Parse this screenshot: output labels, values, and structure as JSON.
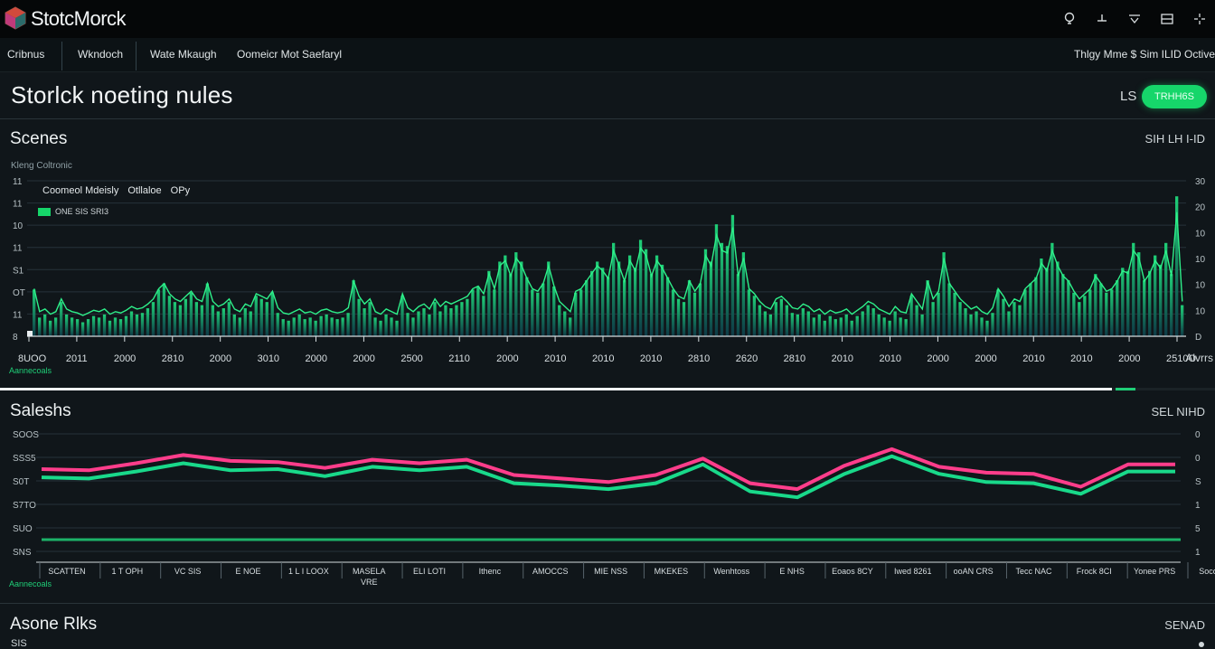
{
  "app": {
    "title": "StotcMorck",
    "colors": {
      "accent": "#16d66a",
      "bars": "#1fce77",
      "pink": "#ff3d8b",
      "teal": "#19d98a",
      "background": "#10161a"
    }
  },
  "toolbar": {
    "icons": [
      "lightbulb-icon",
      "pin-icon",
      "filter-icon",
      "panel-icon",
      "crosshair-icon"
    ]
  },
  "nav": {
    "items": [
      "Cribnus",
      "Wkndoch",
      "Wate Mkaugh",
      "Oomeicr Mot Saefaryl"
    ],
    "right": "Thlgy Mme $ Sim ILID Octive"
  },
  "header": {
    "title": "Storlck noeting nules",
    "ls": "LS",
    "pill": "TRHH6S"
  },
  "section1": {
    "title": "Scenes",
    "right": "SIH LH I-ID",
    "note": "Kleng Coltronic",
    "legend": [
      "Coomeol Mdeisly",
      "Otllaloe",
      "OPy"
    ],
    "legend2": "ONE SIS SRI3",
    "bottom_note": "Aannecoals",
    "axis_label_right": "Alvrrs"
  },
  "section2": {
    "title": "Saleshs",
    "right": "SEL NIHD",
    "bottom_note": "Aannecoals"
  },
  "section3": {
    "title": "Asone Rlks",
    "right": "SENAD",
    "small": "SIS"
  },
  "progress": {
    "value": 0.915
  },
  "chart_data": [
    {
      "type": "bar",
      "title": "",
      "xlabel": "",
      "ylabel": "",
      "y_ticks_left": [
        "11",
        "11",
        "10",
        "11",
        "S1",
        "OT",
        "11",
        "8"
      ],
      "y_ticks_right": [
        "30",
        "20",
        "10",
        "10",
        "10",
        "10",
        "D"
      ],
      "x_ticks": [
        "8UOO",
        "2011",
        "2000",
        "2810",
        "2000",
        "3010",
        "2000",
        "2000",
        "2500",
        "2110",
        "2000",
        "2010",
        "2010",
        "2010",
        "2810",
        "2620",
        "2810",
        "2010",
        "2010",
        "2000",
        "2000",
        "2010",
        "2010",
        "2000",
        "2510O"
      ],
      "ylim": [
        0,
        100
      ],
      "values": [
        30,
        12,
        14,
        10,
        12,
        22,
        14,
        12,
        11,
        9,
        11,
        13,
        12,
        14,
        10,
        12,
        11,
        13,
        16,
        14,
        15,
        18,
        22,
        30,
        34,
        26,
        22,
        20,
        24,
        28,
        22,
        20,
        34,
        20,
        16,
        18,
        22,
        14,
        12,
        18,
        16,
        26,
        24,
        22,
        28,
        15,
        11,
        10,
        12,
        14,
        11,
        12,
        10,
        13,
        14,
        12,
        11,
        12,
        15,
        36,
        24,
        18,
        22,
        12,
        10,
        14,
        12,
        10,
        26,
        15,
        12,
        16,
        18,
        14,
        22,
        16,
        20,
        18,
        20,
        22,
        24,
        30,
        32,
        26,
        42,
        30,
        48,
        52,
        40,
        54,
        48,
        38,
        30,
        28,
        34,
        48,
        32,
        20,
        16,
        12,
        28,
        30,
        36,
        42,
        48,
        44,
        38,
        60,
        48,
        36,
        52,
        44,
        62,
        56,
        40,
        52,
        46,
        38,
        30,
        24,
        22,
        36,
        28,
        34,
        56,
        48,
        72,
        60,
        58,
        78,
        40,
        54,
        30,
        26,
        20,
        16,
        14,
        22,
        24,
        20,
        15,
        14,
        18,
        16,
        12,
        14,
        10,
        13,
        11,
        12,
        14,
        10,
        13,
        16,
        20,
        18,
        14,
        12,
        10,
        16,
        12,
        11,
        26,
        20,
        14,
        36,
        22,
        28,
        54,
        34,
        28,
        22,
        18,
        14,
        16,
        12,
        10,
        15,
        30,
        24,
        16,
        22,
        20,
        30,
        34,
        38,
        50,
        44,
        60,
        48,
        40,
        36,
        28,
        22,
        26,
        30,
        40,
        34,
        28,
        30,
        36,
        44,
        42,
        60,
        54,
        36,
        42,
        52,
        46,
        60,
        40,
        90,
        20
      ]
    },
    {
      "type": "line",
      "title": "",
      "y_ticks_left": [
        "SOOS",
        "SSS5",
        "S0T",
        "S7TO",
        "SUO",
        "SNS"
      ],
      "y_ticks_right": [
        "0",
        "0",
        "S",
        "1",
        "5",
        "1"
      ],
      "x_ticks": [
        "SCATTEN",
        "1 T OPH",
        "VC SIS",
        "E NOE",
        "1 L I LOOX",
        "MASELA / VRE",
        "ELI LOTI",
        "Ithenc",
        "AMOCCS",
        "MIE NSS",
        "MKEKES",
        "Wenhtoss",
        "E NHS",
        "Eoaos 8CY",
        "Iwed 8261",
        "ooAN CRS",
        "Tecc NAC",
        "Frock 8CI",
        "Yonee PRS",
        "Soconue"
      ],
      "ylim": [
        0,
        100
      ],
      "series": [
        {
          "color": "#ff3d8b",
          "values": [
            70,
            69,
            75,
            82,
            77,
            76,
            71,
            78,
            75,
            78,
            65,
            62,
            59,
            65,
            79,
            58,
            53,
            73,
            87,
            72,
            67,
            66,
            55,
            74,
            74
          ]
        },
        {
          "color": "#19d98a",
          "values": [
            63,
            62,
            68,
            75,
            69,
            70,
            64,
            72,
            69,
            72,
            58,
            56,
            53,
            58,
            74,
            51,
            46,
            66,
            81,
            66,
            59,
            58,
            49,
            68,
            68
          ]
        },
        {
          "color": "#1fce77",
          "values": [
            10,
            10
          ]
        }
      ]
    }
  ]
}
